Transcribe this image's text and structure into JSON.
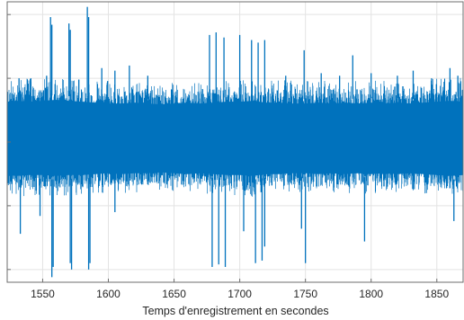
{
  "chart_data": {
    "type": "line",
    "title": "",
    "xlabel": "Temps d'enregistrement en secondes",
    "ylabel": "",
    "xlim": [
      1523,
      1870
    ],
    "ylim": [
      -1.1,
      1.1
    ],
    "x_ticks": [
      1550,
      1600,
      1650,
      1700,
      1750,
      1800,
      1850
    ],
    "x_tick_labels": [
      "1550",
      "1600",
      "1650",
      "1700",
      "1750",
      "1800",
      "1850"
    ],
    "y_ticks": [
      -1,
      -0.5,
      0,
      0.5,
      1
    ],
    "grid": true,
    "series": [
      {
        "name": "",
        "color": "#0072BD",
        "envelope": {
          "x": [
            1523,
            1530,
            1540,
            1550,
            1560,
            1570,
            1580,
            1590,
            1600,
            1610,
            1620,
            1630,
            1640,
            1650,
            1660,
            1670,
            1680,
            1690,
            1700,
            1710,
            1720,
            1730,
            1740,
            1750,
            1760,
            1770,
            1780,
            1790,
            1800,
            1810,
            1820,
            1830,
            1840,
            1850,
            1860,
            1870
          ],
          "upper": [
            0.44,
            0.45,
            0.44,
            0.45,
            0.46,
            0.45,
            0.44,
            0.43,
            0.42,
            0.42,
            0.43,
            0.42,
            0.41,
            0.42,
            0.43,
            0.42,
            0.43,
            0.44,
            0.44,
            0.45,
            0.43,
            0.43,
            0.42,
            0.42,
            0.43,
            0.42,
            0.43,
            0.42,
            0.43,
            0.42,
            0.43,
            0.42,
            0.43,
            0.44,
            0.45,
            0.44
          ],
          "lower": [
            -0.36,
            -0.37,
            -0.36,
            -0.36,
            -0.37,
            -0.36,
            -0.36,
            -0.35,
            -0.34,
            -0.35,
            -0.34,
            -0.34,
            -0.33,
            -0.34,
            -0.35,
            -0.34,
            -0.35,
            -0.36,
            -0.36,
            -0.37,
            -0.35,
            -0.35,
            -0.34,
            -0.34,
            -0.35,
            -0.34,
            -0.35,
            -0.34,
            -0.35,
            -0.34,
            -0.35,
            -0.34,
            -0.35,
            -0.36,
            -0.37,
            -0.36
          ]
        },
        "spikes": [
          {
            "x": 1532,
            "y": 0.5
          },
          {
            "x": 1541,
            "y": 0.5
          },
          {
            "x": 1553,
            "y": 0.52
          },
          {
            "x": 1556,
            "y": 0.98
          },
          {
            "x": 1557,
            "y": 0.92
          },
          {
            "x": 1557,
            "y": -1.06
          },
          {
            "x": 1558,
            "y": -0.98
          },
          {
            "x": 1570,
            "y": 0.93
          },
          {
            "x": 1571,
            "y": 0.88
          },
          {
            "x": 1571,
            "y": -0.95
          },
          {
            "x": 1572,
            "y": -1.0
          },
          {
            "x": 1584,
            "y": 1.06
          },
          {
            "x": 1585,
            "y": 0.98
          },
          {
            "x": 1585,
            "y": -1.0
          },
          {
            "x": 1586,
            "y": -0.95
          },
          {
            "x": 1595,
            "y": 0.58
          },
          {
            "x": 1605,
            "y": 0.56
          },
          {
            "x": 1616,
            "y": 0.6
          },
          {
            "x": 1630,
            "y": 0.52
          },
          {
            "x": 1605,
            "y": -0.55
          },
          {
            "x": 1548,
            "y": -0.58
          },
          {
            "x": 1533,
            "y": -0.72
          },
          {
            "x": 1677,
            "y": 0.84
          },
          {
            "x": 1679,
            "y": -0.98
          },
          {
            "x": 1682,
            "y": 0.86
          },
          {
            "x": 1684,
            "y": -0.96
          },
          {
            "x": 1688,
            "y": 0.82
          },
          {
            "x": 1689,
            "y": -0.98
          },
          {
            "x": 1700,
            "y": 0.84
          },
          {
            "x": 1703,
            "y": -0.7
          },
          {
            "x": 1709,
            "y": 0.8
          },
          {
            "x": 1712,
            "y": -0.95
          },
          {
            "x": 1714,
            "y": 0.78
          },
          {
            "x": 1717,
            "y": -0.93
          },
          {
            "x": 1719,
            "y": 0.8
          },
          {
            "x": 1719,
            "y": -0.82
          },
          {
            "x": 1735,
            "y": 0.52
          },
          {
            "x": 1749,
            "y": 0.72
          },
          {
            "x": 1750,
            "y": -0.95
          },
          {
            "x": 1747,
            "y": -0.68
          },
          {
            "x": 1762,
            "y": 0.54
          },
          {
            "x": 1776,
            "y": 0.52
          },
          {
            "x": 1786,
            "y": 0.68
          },
          {
            "x": 1795,
            "y": -0.78
          },
          {
            "x": 1800,
            "y": 0.54
          },
          {
            "x": 1820,
            "y": 0.52
          },
          {
            "x": 1832,
            "y": 0.56
          },
          {
            "x": 1846,
            "y": 0.5
          },
          {
            "x": 1860,
            "y": 0.58
          },
          {
            "x": 1863,
            "y": -0.62
          },
          {
            "x": 1866,
            "y": 0.52
          }
        ]
      }
    ]
  }
}
